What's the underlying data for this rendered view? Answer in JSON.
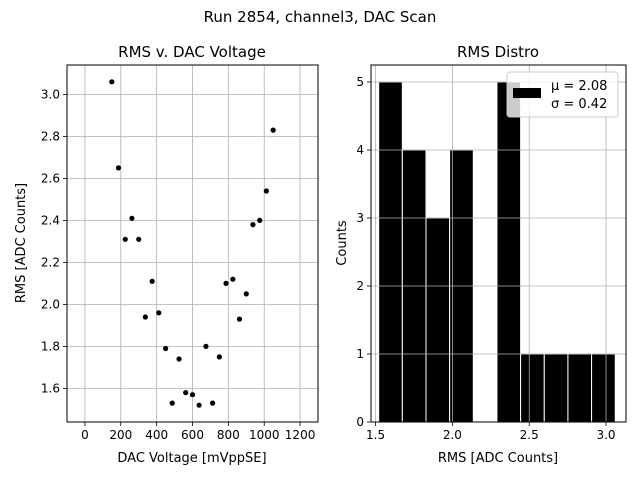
{
  "suptitle": "Run 2854, channel3, DAC Scan",
  "chart_data": [
    {
      "type": "scatter",
      "title": "RMS v. DAC Voltage",
      "xlabel": "DAC Voltage [mVppSE]",
      "ylabel": "RMS [ADC Counts]",
      "xlim": [
        -100,
        1300
      ],
      "ylim": [
        1.44,
        3.14
      ],
      "xticks": [
        0,
        200,
        400,
        600,
        800,
        1000,
        1200
      ],
      "yticks": [
        1.6,
        1.8,
        2.0,
        2.2,
        2.4,
        2.6,
        2.8,
        3.0
      ],
      "yticklabels": [
        "1.6",
        "1.8",
        "2.0",
        "2.2",
        "2.4",
        "2.6",
        "2.8",
        "3.0"
      ],
      "grid": true,
      "marker_color": "#000000",
      "points": [
        {
          "x": 150,
          "y": 3.06
        },
        {
          "x": 187,
          "y": 2.65
        },
        {
          "x": 225,
          "y": 2.31
        },
        {
          "x": 262,
          "y": 2.41
        },
        {
          "x": 300,
          "y": 2.31
        },
        {
          "x": 337,
          "y": 1.94
        },
        {
          "x": 375,
          "y": 2.11
        },
        {
          "x": 412,
          "y": 1.96
        },
        {
          "x": 450,
          "y": 1.79
        },
        {
          "x": 487,
          "y": 1.53
        },
        {
          "x": 525,
          "y": 1.74
        },
        {
          "x": 562,
          "y": 1.58
        },
        {
          "x": 600,
          "y": 1.57
        },
        {
          "x": 637,
          "y": 1.52
        },
        {
          "x": 675,
          "y": 1.8
        },
        {
          "x": 712,
          "y": 1.53
        },
        {
          "x": 750,
          "y": 1.75
        },
        {
          "x": 787,
          "y": 2.1
        },
        {
          "x": 825,
          "y": 2.12
        },
        {
          "x": 862,
          "y": 1.93
        },
        {
          "x": 900,
          "y": 2.05
        },
        {
          "x": 937,
          "y": 2.38
        },
        {
          "x": 975,
          "y": 2.4
        },
        {
          "x": 1012,
          "y": 2.54
        },
        {
          "x": 1050,
          "y": 2.83
        }
      ]
    },
    {
      "type": "bar",
      "title": "RMS Distro",
      "xlabel": "RMS [ADC Counts]",
      "ylabel": "Counts",
      "xlim": [
        1.47,
        3.13
      ],
      "ylim": [
        0,
        5.25
      ],
      "xticks": [
        1.5,
        2.0,
        2.5,
        3.0
      ],
      "xticklabels": [
        "1.5",
        "2.0",
        "2.5",
        "3.0"
      ],
      "yticks": [
        0,
        1,
        2,
        3,
        4,
        5
      ],
      "grid": true,
      "bar_color": "#000000",
      "bin_edges": [
        1.52,
        1.674,
        1.828,
        1.982,
        2.136,
        2.29,
        2.444,
        2.598,
        2.752,
        2.906,
        3.06
      ],
      "values": [
        5,
        4,
        3,
        4,
        0,
        5,
        1,
        1,
        1,
        1
      ],
      "legend": {
        "position": "upper right",
        "lines": [
          "μ = 2.08",
          "σ = 0.42"
        ]
      }
    }
  ]
}
